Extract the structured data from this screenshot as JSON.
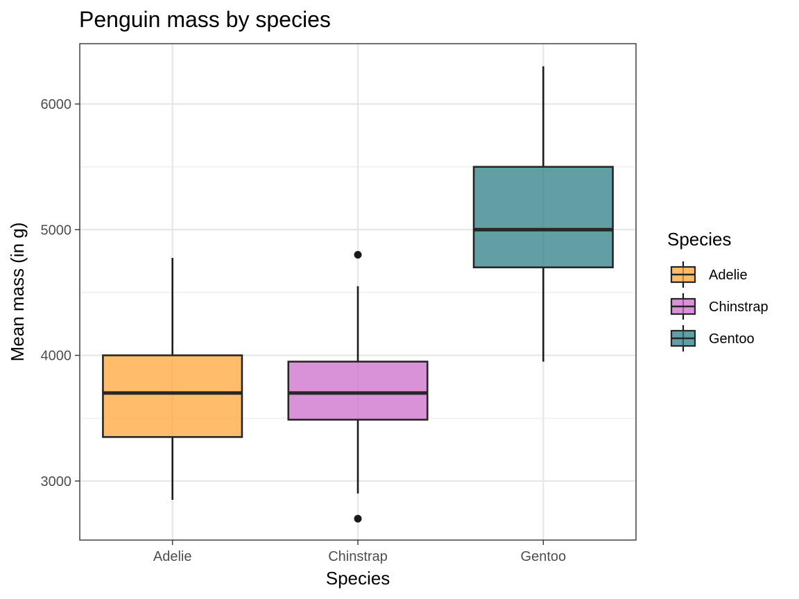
{
  "chart_data": {
    "type": "boxplot",
    "title": "Penguin mass by species",
    "xlabel": "Species",
    "ylabel": "Mean mass (in g)",
    "ylim": [
      2530,
      6480
    ],
    "y_ticks": [
      3000,
      4000,
      5000,
      6000
    ],
    "y_minor_ticks": [
      3500,
      4500,
      5500
    ],
    "grid": true,
    "legend": {
      "title": "Species",
      "placement": "right"
    },
    "categories": [
      "Adelie",
      "Chinstrap",
      "Gentoo"
    ],
    "boxes": [
      {
        "name": "Adelie",
        "color": "#FFA53A",
        "whisker_low": 2850,
        "q1": 3350,
        "median": 3700,
        "q3": 4000,
        "whisker_high": 4775,
        "outliers": []
      },
      {
        "name": "Chinstrap",
        "color": "#CC6CCB",
        "whisker_low": 2900,
        "q1": 3488,
        "median": 3700,
        "q3": 3950,
        "whisker_high": 4550,
        "outliers": [
          4800,
          2700
        ]
      },
      {
        "name": "Gentoo",
        "color": "#2C7F85",
        "whisker_low": 3950,
        "q1": 4700,
        "median": 5000,
        "q3": 5500,
        "whisker_high": 6300,
        "outliers": []
      }
    ]
  }
}
